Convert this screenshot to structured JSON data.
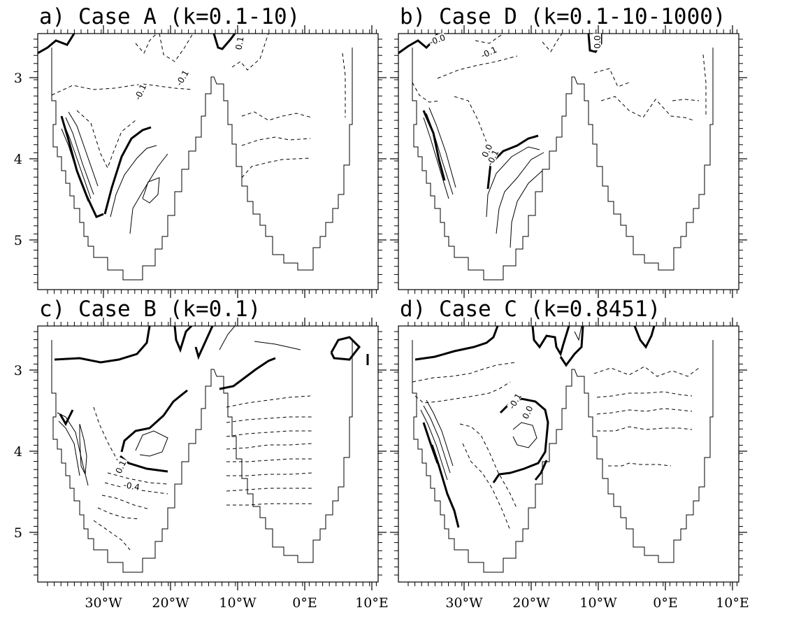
{
  "chart_data": [
    {
      "type": "contour",
      "title": "a) Case A (k=0.1-10)",
      "xticks": [
        "30°W",
        "20°W",
        "10°W",
        "0°E",
        "10°E"
      ],
      "yticks": [
        "3",
        "4",
        "5"
      ],
      "xlim": [
        -38,
        13
      ],
      "ylim": [
        5.5,
        2.5
      ],
      "contour_labels": [
        "-0.1",
        "-0.1",
        "0.1"
      ]
    },
    {
      "type": "contour",
      "title": "b) Case D (k=0.1-10-1000)",
      "xticks": [
        "30°W",
        "20°W",
        "10°W",
        "0°E",
        "10°E"
      ],
      "yticks": [
        "3",
        "4",
        "5"
      ],
      "xlim": [
        -38,
        13
      ],
      "ylim": [
        5.5,
        2.5
      ],
      "contour_labels": [
        "-0.0",
        "-0.1",
        "0.0",
        "0.0",
        "-0.1"
      ]
    },
    {
      "type": "contour",
      "title": "c) Case B (k=0.1)",
      "xticks": [
        "30°W",
        "20°W",
        "10°W",
        "0°E",
        "10°E"
      ],
      "yticks": [
        "3",
        "4",
        "5"
      ],
      "xlim": [
        -38,
        13
      ],
      "ylim": [
        5.5,
        2.5
      ],
      "contour_labels": [
        "0.1",
        "-0.4"
      ]
    },
    {
      "type": "contour",
      "title": "d) Case C (k=0.8451)",
      "xticks": [
        "30°W",
        "20°W",
        "10°W",
        "0°E",
        "10°E"
      ],
      "yticks": [
        "3",
        "4",
        "5"
      ],
      "xlim": [
        -38,
        13
      ],
      "ylim": [
        5.5,
        2.5
      ],
      "contour_labels": [
        "-0.1",
        "0.0"
      ]
    }
  ]
}
